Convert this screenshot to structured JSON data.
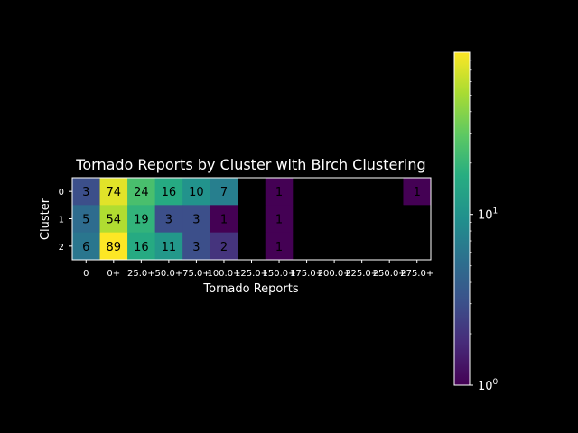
{
  "chart_data": {
    "type": "heatmap",
    "title": "Tornado Reports by Cluster with Birch Clustering",
    "xlabel": "Tornado Reports",
    "ylabel": "Cluster",
    "x_categories": [
      "0",
      "0+",
      "25.0+",
      "50.0+",
      "75.0+",
      "100.0+",
      "125.0+",
      "150.0+",
      "175.0+",
      "200.0+",
      "225.0+",
      "250.0+",
      "275.0+"
    ],
    "y_categories": [
      "0",
      "1",
      "2"
    ],
    "values": [
      [
        3,
        74,
        24,
        16,
        10,
        7,
        null,
        1,
        null,
        null,
        null,
        null,
        1
      ],
      [
        5,
        54,
        19,
        3,
        3,
        1,
        null,
        1,
        null,
        null,
        null,
        null,
        null
      ],
      [
        6,
        89,
        16,
        11,
        3,
        2,
        null,
        1,
        null,
        null,
        null,
        null,
        null
      ]
    ],
    "colorscale": "viridis",
    "color_scale_type": "log",
    "colorbar": {
      "range": [
        1,
        89
      ],
      "tick_labels": [
        {
          "base": "10",
          "exp": "0",
          "value": 1
        },
        {
          "base": "10",
          "exp": "1",
          "value": 10
        }
      ]
    },
    "empty_cell_color": "#000000"
  }
}
